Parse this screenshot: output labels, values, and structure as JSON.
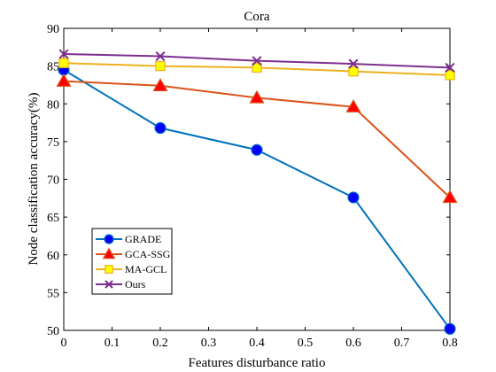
{
  "chart_data": {
    "type": "line",
    "title": "Cora",
    "xlabel": "Features disturbance ratio",
    "ylabel": "Node classification accuracy(%)",
    "xlim": [
      0,
      0.8
    ],
    "ylim": [
      50,
      90
    ],
    "xticks": [
      0,
      0.1,
      0.2,
      0.3,
      0.4,
      0.5,
      0.6,
      0.7,
      0.8
    ],
    "xtick_labels": [
      "0",
      "0.1",
      "0.2",
      "0.3",
      "0.4",
      "0.5",
      "0.6",
      "0.7",
      "0.8"
    ],
    "yticks": [
      50,
      55,
      60,
      65,
      70,
      75,
      80,
      85,
      90
    ],
    "ytick_labels": [
      "50",
      "55",
      "60",
      "65",
      "70",
      "75",
      "80",
      "85",
      "90"
    ],
    "grid": false,
    "legend_position": "bottom-left",
    "x": [
      0,
      0.2,
      0.4,
      0.6,
      0.8
    ],
    "series": [
      {
        "name": "GRADE",
        "values": [
          84.5,
          76.8,
          73.9,
          67.6,
          50.2
        ],
        "color": "#0072BD",
        "marker": "circle",
        "marker_fill": "#0000FF"
      },
      {
        "name": "GCA-SSG",
        "values": [
          83.0,
          82.4,
          80.8,
          79.6,
          67.6
        ],
        "color": "#D95319",
        "marker": "triangle",
        "marker_fill": "#FF0000"
      },
      {
        "name": "MA-GCL",
        "values": [
          85.4,
          85.0,
          84.8,
          84.3,
          83.8
        ],
        "color": "#EDB120",
        "marker": "square",
        "marker_fill": "#FFFF00"
      },
      {
        "name": "Ours",
        "values": [
          86.6,
          86.3,
          85.7,
          85.3,
          84.8
        ],
        "color": "#7E2F8E",
        "marker": "x",
        "marker_fill": "#7E2F8E"
      }
    ]
  }
}
